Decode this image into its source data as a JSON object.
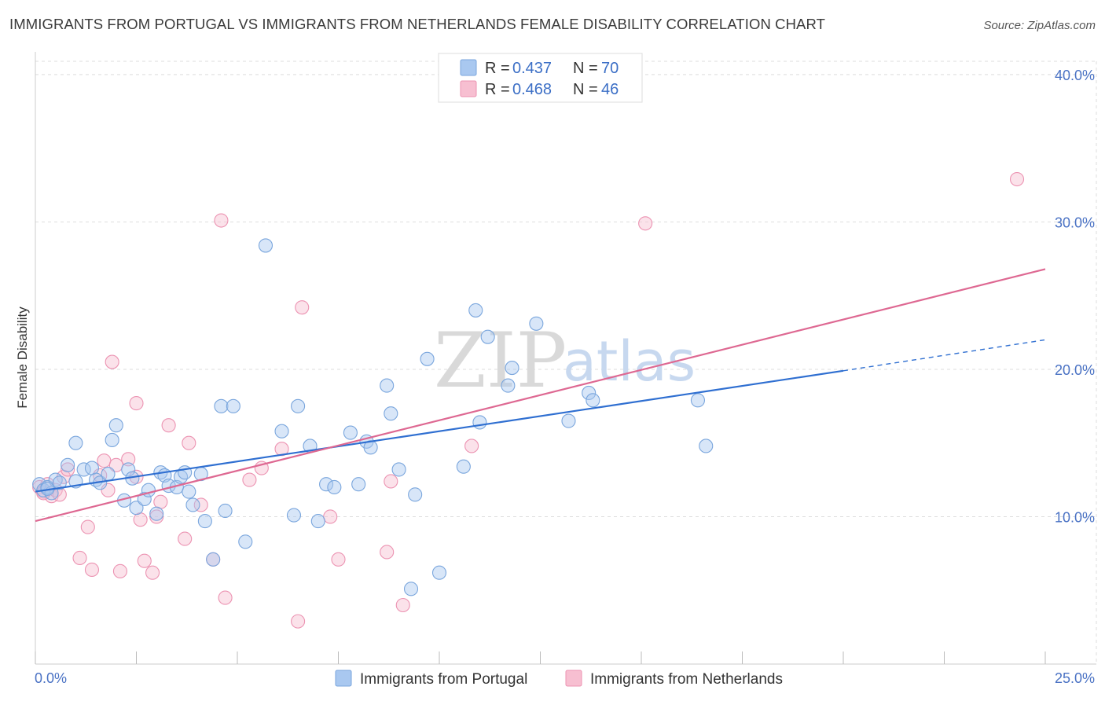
{
  "title": "IMMIGRANTS FROM PORTUGAL VS IMMIGRANTS FROM NETHERLANDS FEMALE DISABILITY CORRELATION CHART",
  "source": "Source: ZipAtlas.com",
  "watermark": {
    "zip": "ZIP",
    "atlas": "atlas"
  },
  "legend": {
    "r_label": "R =",
    "n_label": "N =",
    "items": [
      {
        "r": "0.437",
        "n": "70"
      },
      {
        "r": "0.468",
        "n": "46"
      }
    ]
  },
  "colors": {
    "portugal_fill": "#a9c8f0",
    "portugal_stroke": "#7aa6dd",
    "portugal_line": "#2f6fd1",
    "netherlands_fill": "#f7bfd1",
    "netherlands_stroke": "#ec93b2",
    "netherlands_line": "#de6892",
    "axis_label": "#4a72c4",
    "grid": "#dddddd"
  },
  "chart_data": {
    "type": "scatter",
    "title": "IMMIGRANTS FROM PORTUGAL VS IMMIGRANTS FROM NETHERLANDS FEMALE DISABILITY CORRELATION CHART",
    "xlabel": "",
    "ylabel": "Female Disability",
    "xlim": [
      0,
      25
    ],
    "ylim": [
      0,
      40.9
    ],
    "x_tick_labels": [
      "0.0%",
      "25.0%"
    ],
    "y_ticks": [
      10,
      20,
      30,
      40
    ],
    "y_tick_labels": [
      "10.0%",
      "20.0%",
      "30.0%",
      "40.0%"
    ],
    "grid": true,
    "legend_position": "top-center",
    "series": [
      {
        "name": "Immigrants from Portugal",
        "r": 0.437,
        "n": 70,
        "trend": {
          "x0": 0,
          "y0": 11.7,
          "x1": 20,
          "y1": 19.9,
          "dashed_to_x": 25,
          "dashed_to_y": 22.0
        },
        "points": [
          [
            0.1,
            12.2
          ],
          [
            0.2,
            11.8
          ],
          [
            0.3,
            12.0
          ],
          [
            0.4,
            11.6
          ],
          [
            0.5,
            12.5
          ],
          [
            0.6,
            12.3
          ],
          [
            0.8,
            13.5
          ],
          [
            1.0,
            12.4
          ],
          [
            1.0,
            15.0
          ],
          [
            1.2,
            13.2
          ],
          [
            1.4,
            13.3
          ],
          [
            1.5,
            12.5
          ],
          [
            1.6,
            12.3
          ],
          [
            1.8,
            12.9
          ],
          [
            1.9,
            15.2
          ],
          [
            2.0,
            16.2
          ],
          [
            2.2,
            11.1
          ],
          [
            2.3,
            13.2
          ],
          [
            2.4,
            12.6
          ],
          [
            2.5,
            10.6
          ],
          [
            2.7,
            11.2
          ],
          [
            2.8,
            11.8
          ],
          [
            3.0,
            10.2
          ],
          [
            3.1,
            13.0
          ],
          [
            3.2,
            12.8
          ],
          [
            3.3,
            12.1
          ],
          [
            3.5,
            12.0
          ],
          [
            3.6,
            12.7
          ],
          [
            3.7,
            13.0
          ],
          [
            3.8,
            11.7
          ],
          [
            3.9,
            10.8
          ],
          [
            4.1,
            12.9
          ],
          [
            4.2,
            9.7
          ],
          [
            4.4,
            7.1
          ],
          [
            4.6,
            17.5
          ],
          [
            4.7,
            10.4
          ],
          [
            4.9,
            17.5
          ],
          [
            5.2,
            8.3
          ],
          [
            5.7,
            28.4
          ],
          [
            6.1,
            15.8
          ],
          [
            6.4,
            10.1
          ],
          [
            6.5,
            17.5
          ],
          [
            6.8,
            14.8
          ],
          [
            7.0,
            9.7
          ],
          [
            7.2,
            12.2
          ],
          [
            7.4,
            12.0
          ],
          [
            7.8,
            15.7
          ],
          [
            8.0,
            12.2
          ],
          [
            8.2,
            15.1
          ],
          [
            8.3,
            14.7
          ],
          [
            8.7,
            18.9
          ],
          [
            8.8,
            17.0
          ],
          [
            9.0,
            13.2
          ],
          [
            9.3,
            5.1
          ],
          [
            9.4,
            11.5
          ],
          [
            9.7,
            20.7
          ],
          [
            10.0,
            6.2
          ],
          [
            10.6,
            13.4
          ],
          [
            10.9,
            24.0
          ],
          [
            11.0,
            16.4
          ],
          [
            11.2,
            22.2
          ],
          [
            11.7,
            18.9
          ],
          [
            11.8,
            20.1
          ],
          [
            12.4,
            23.1
          ],
          [
            13.2,
            16.5
          ],
          [
            13.7,
            18.4
          ],
          [
            13.8,
            17.9
          ],
          [
            16.4,
            17.9
          ],
          [
            16.6,
            14.8
          ],
          [
            0.3,
            11.9
          ]
        ]
      },
      {
        "name": "Immigrants from Netherlands",
        "r": 0.468,
        "n": 46,
        "trend": {
          "x0": 0,
          "y0": 9.7,
          "x1": 25,
          "y1": 26.8
        },
        "points": [
          [
            0.1,
            12.0
          ],
          [
            0.2,
            11.7
          ],
          [
            0.3,
            12.2
          ],
          [
            0.4,
            11.4
          ],
          [
            0.5,
            11.8
          ],
          [
            0.6,
            11.5
          ],
          [
            0.7,
            12.7
          ],
          [
            0.8,
            13.2
          ],
          [
            1.1,
            7.2
          ],
          [
            1.3,
            9.3
          ],
          [
            1.4,
            6.4
          ],
          [
            1.6,
            12.8
          ],
          [
            1.7,
            13.8
          ],
          [
            1.8,
            11.8
          ],
          [
            1.9,
            20.5
          ],
          [
            2.0,
            13.5
          ],
          [
            2.1,
            6.3
          ],
          [
            2.3,
            13.9
          ],
          [
            2.5,
            12.7
          ],
          [
            2.5,
            17.7
          ],
          [
            2.6,
            9.8
          ],
          [
            2.7,
            7.0
          ],
          [
            2.9,
            6.2
          ],
          [
            3.0,
            10.0
          ],
          [
            3.1,
            11.0
          ],
          [
            3.3,
            16.2
          ],
          [
            3.7,
            8.5
          ],
          [
            3.8,
            15.0
          ],
          [
            4.1,
            10.8
          ],
          [
            4.4,
            7.1
          ],
          [
            4.7,
            4.5
          ],
          [
            4.6,
            30.1
          ],
          [
            5.3,
            12.5
          ],
          [
            5.6,
            13.3
          ],
          [
            6.1,
            14.6
          ],
          [
            6.5,
            2.9
          ],
          [
            6.6,
            24.2
          ],
          [
            7.3,
            10.0
          ],
          [
            7.5,
            7.1
          ],
          [
            8.7,
            7.6
          ],
          [
            8.8,
            12.4
          ],
          [
            9.1,
            4.0
          ],
          [
            10.8,
            14.8
          ],
          [
            15.1,
            29.9
          ],
          [
            24.3,
            32.9
          ],
          [
            0.2,
            11.6
          ]
        ]
      }
    ]
  },
  "bottom_legend": [
    {
      "label": "Immigrants from Portugal"
    },
    {
      "label": "Immigrants from Netherlands"
    }
  ]
}
